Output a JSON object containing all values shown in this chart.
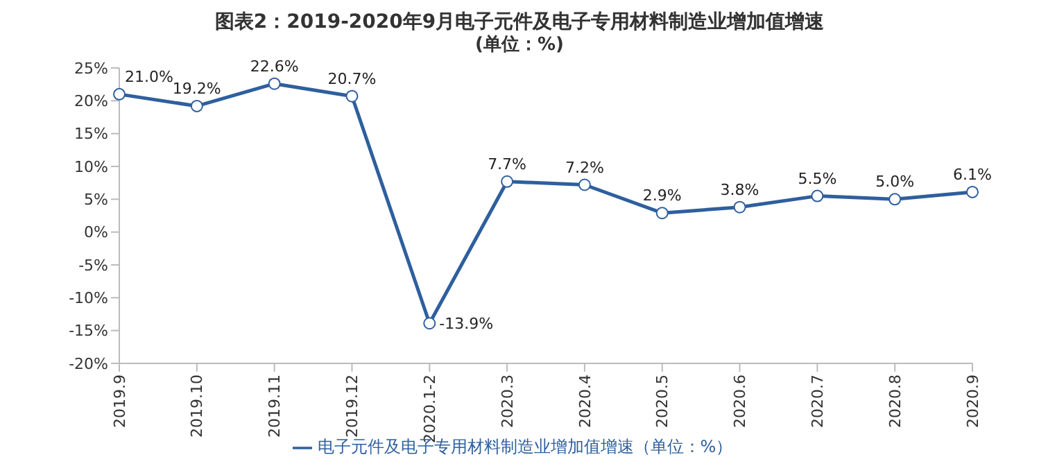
{
  "chart_data": {
    "type": "line",
    "title": "图表2：2019-2020年9月电子元件及电子专用材料制造业增加值增速",
    "subtitle": "(单位：%)",
    "categories": [
      "2019.9",
      "2019.10",
      "2019.11",
      "2019.12",
      "2020.1-2",
      "2020.3",
      "2020.4",
      "2020.5",
      "2020.6",
      "2020.7",
      "2020.8",
      "2020.9"
    ],
    "series": [
      {
        "name": "电子元件及电子专用材料制造业增加值增速（单位：%）",
        "color": "#2e5f9e",
        "values": [
          21.0,
          19.2,
          22.6,
          20.7,
          -13.9,
          7.7,
          7.2,
          2.9,
          3.8,
          5.5,
          5.0,
          6.1
        ],
        "value_labels": [
          "21.0%",
          "19.2%",
          "22.6%",
          "20.7%",
          "-13.9%",
          "7.7%",
          "7.2%",
          "2.9%",
          "3.8%",
          "5.5%",
          "5.0%",
          "6.1%"
        ]
      }
    ],
    "ylim": [
      -20,
      25
    ],
    "yticks": [
      {
        "value": -20,
        "label": "-20%"
      },
      {
        "value": -15,
        "label": "-15%"
      },
      {
        "value": -10,
        "label": "-10%"
      },
      {
        "value": -5,
        "label": "-5%"
      },
      {
        "value": 0,
        "label": "0%"
      },
      {
        "value": 5,
        "label": "5%"
      },
      {
        "value": 10,
        "label": "10%"
      },
      {
        "value": 15,
        "label": "15%"
      },
      {
        "value": 20,
        "label": "20%"
      },
      {
        "value": 25,
        "label": "25%"
      }
    ],
    "grid": false,
    "legend": "bottom",
    "marker": "circle",
    "line_style": "solid"
  }
}
